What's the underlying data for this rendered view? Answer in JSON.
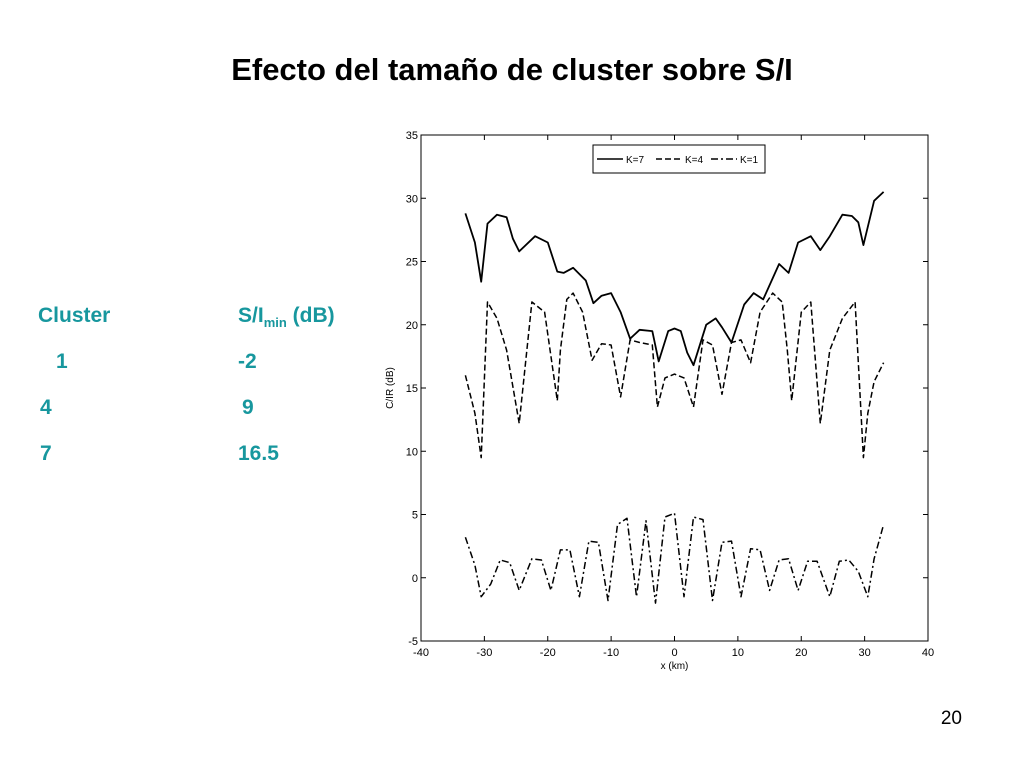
{
  "slide": {
    "title": "Efecto del tamaño de cluster sobre S/I",
    "page_number": "20"
  },
  "cluster_table": {
    "header_cluster": "Cluster",
    "header_si_main": "S/I",
    "header_si_sub": "min",
    "header_si_unit": " (dB)",
    "rows": [
      {
        "cluster": "1",
        "si": "-2"
      },
      {
        "cluster": "4",
        "si": "9"
      },
      {
        "cluster": "7",
        "si": "16.5"
      }
    ]
  },
  "colors": {
    "table_text": "#17979e",
    "plot_line": "#000000"
  },
  "chart_data": {
    "type": "line",
    "xlabel": "x (km)",
    "ylabel": "C/IR (dB)",
    "xlim": [
      -40,
      40
    ],
    "ylim": [
      -5,
      35
    ],
    "xticks": [
      -40,
      -30,
      -20,
      -10,
      0,
      10,
      20,
      30,
      40
    ],
    "yticks": [
      -5,
      0,
      5,
      10,
      15,
      20,
      25,
      30,
      35
    ],
    "grid": false,
    "legend_position": "top-right",
    "series": [
      {
        "name": "K=7",
        "style": "solid",
        "x": [
          -33,
          -31.5,
          -30.5,
          -29.5,
          -28,
          -26.5,
          -25.5,
          -24.5,
          -22,
          -20,
          -18.5,
          -17.5,
          -16,
          -14,
          -12.8,
          -11.5,
          -10,
          -8.5,
          -7,
          -5.5,
          -3.5,
          -2.5,
          -1,
          0,
          1,
          2,
          3,
          5,
          6.5,
          7.5,
          9,
          11,
          12.5,
          14,
          16.5,
          18,
          19.5,
          21.5,
          23,
          24.5,
          26.5,
          28,
          29,
          29.8,
          31.5,
          33
        ],
        "y": [
          28.8,
          26.5,
          23.4,
          28,
          28.7,
          28.5,
          26.8,
          25.8,
          27,
          26.5,
          24.2,
          24.1,
          24.5,
          23.5,
          21.7,
          22.3,
          22.5,
          21,
          18.9,
          19.6,
          19.5,
          17.1,
          19.5,
          19.7,
          19.5,
          17.8,
          16.8,
          20,
          20.5,
          19.8,
          18.6,
          21.6,
          22.5,
          22,
          24.8,
          24.1,
          26.5,
          27,
          25.9,
          27,
          28.7,
          28.6,
          28.1,
          26.3,
          29.8,
          30.5
        ]
      },
      {
        "name": "K=4",
        "style": "dashed",
        "x": [
          -33,
          -31.5,
          -30.5,
          -29.5,
          -28,
          -26.5,
          -24.5,
          -22.5,
          -20.5,
          -18.5,
          -18,
          -17,
          -16,
          -14.5,
          -13,
          -11.5,
          -10,
          -8.5,
          -7,
          -5.5,
          -3.5,
          -2.7,
          -1.5,
          0,
          1.5,
          3,
          4.5,
          6,
          7.5,
          9,
          10.5,
          12,
          13.5,
          15.5,
          17,
          17.8,
          18.5,
          20,
          21.5,
          23,
          24.5,
          26.5,
          28.5,
          29.8,
          30.5,
          31.5,
          33
        ],
        "y": [
          16,
          13,
          9.5,
          21.8,
          20.5,
          18,
          12.2,
          21.8,
          21,
          14,
          18,
          22,
          22.5,
          21,
          17.2,
          18.5,
          18.4,
          14.3,
          18.8,
          18.6,
          18.4,
          13.5,
          15.8,
          16.1,
          15.8,
          13.5,
          18.8,
          18.4,
          14.5,
          18.6,
          18.8,
          17,
          21,
          22.5,
          21.8,
          18,
          14,
          21,
          21.8,
          12.2,
          18,
          20.5,
          21.8,
          9.5,
          13,
          15.5,
          17
        ]
      },
      {
        "name": "K=1",
        "style": "dashdot",
        "x": [
          -33,
          -31.5,
          -30.5,
          -29,
          -27.5,
          -26,
          -24.5,
          -22.5,
          -21,
          -19.5,
          -18,
          -16.5,
          -15,
          -13.5,
          -12,
          -10.5,
          -9,
          -7.5,
          -6,
          -4.5,
          -3,
          -1.5,
          0,
          1.5,
          3,
          4.5,
          6,
          7.5,
          9,
          10.5,
          12,
          13.5,
          15,
          16.5,
          18,
          19.5,
          21,
          22.5,
          24.5,
          26,
          27.5,
          29,
          30.5,
          31.5,
          33
        ],
        "y": [
          3.2,
          1,
          -1.5,
          -0.5,
          1.4,
          1.2,
          -1,
          1.5,
          1.4,
          -1,
          2.2,
          2.2,
          -1.5,
          2.9,
          2.8,
          -1.8,
          4.2,
          4.7,
          -1.5,
          4.5,
          -2,
          4.8,
          5.1,
          -1.5,
          4.8,
          4.6,
          -1.8,
          2.8,
          2.9,
          -1.5,
          2.3,
          2.2,
          -1,
          1.4,
          1.5,
          -1,
          1.3,
          1.3,
          -1.5,
          1.3,
          1.4,
          0.5,
          -1.5,
          1.5,
          4.2
        ]
      }
    ]
  }
}
